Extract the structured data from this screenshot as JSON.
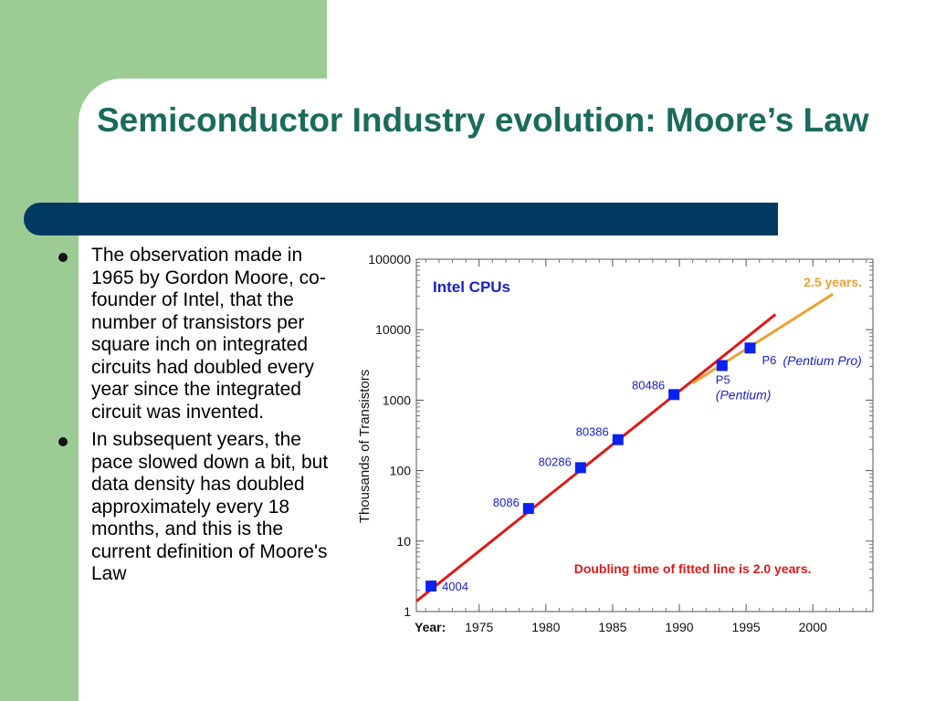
{
  "slide": {
    "title": "Semiconductor Industry evolution: Moore’s Law",
    "bullets": [
      "The observation made in 1965 by Gordon Moore, co-founder of Intel, that the number of transistors per square inch on integrated circuits had doubled every year since the integrated circuit was invented.",
      "In subsequent years, the pace slowed down a bit, but data density has doubled approximately every 18 months, and this is the current definition of Moore's Law"
    ],
    "colors": {
      "background_band": "#9ccc94",
      "title": "#1a6b5c",
      "divider": "#003a63"
    }
  },
  "chart_data": {
    "type": "scatter",
    "title": "Intel CPUs",
    "xlabel": "Year:",
    "ylabel": "Thousands of Transistors",
    "x_ticks": [
      "1975",
      "1980",
      "1985",
      "1990",
      "1995",
      "2000"
    ],
    "y_ticks": [
      "1",
      "10",
      "100",
      "1000",
      "10000",
      "100000"
    ],
    "xlim": [
      1970.3,
      2004.5
    ],
    "ylim": [
      1,
      100000
    ],
    "y_scale": "log",
    "series": [
      {
        "type": "scatter",
        "color": "#0a22f0",
        "points": [
          {
            "x": 1971.4,
            "y": 2.3,
            "label": "4004"
          },
          {
            "x": 1978.7,
            "y": 29,
            "label": "8086"
          },
          {
            "x": 1982.6,
            "y": 110,
            "label": "80286"
          },
          {
            "x": 1985.4,
            "y": 275,
            "label": "80386"
          },
          {
            "x": 1989.6,
            "y": 1200,
            "label": "80486"
          },
          {
            "x": 1993.2,
            "y": 3100,
            "label": "P5",
            "note": "(Pentium)"
          },
          {
            "x": 1995.3,
            "y": 5500,
            "label": "P6",
            "note": "(Pentium Pro)"
          }
        ]
      },
      {
        "type": "line",
        "color": "#e01818",
        "points": [
          {
            "x": 1970.3,
            "y": 1.4
          },
          {
            "x": 1997.2,
            "y": 16500
          }
        ]
      },
      {
        "type": "line",
        "color": "#f0a030",
        "points": [
          {
            "x": 1991.0,
            "y": 1750
          },
          {
            "x": 2001.5,
            "y": 32000
          }
        ]
      }
    ],
    "annotations": [
      {
        "text": "2.5 years.",
        "color": "#f0a030"
      },
      {
        "text": "Doubling time of fitted line is 2.0 years.",
        "color": "#e01818"
      }
    ]
  }
}
